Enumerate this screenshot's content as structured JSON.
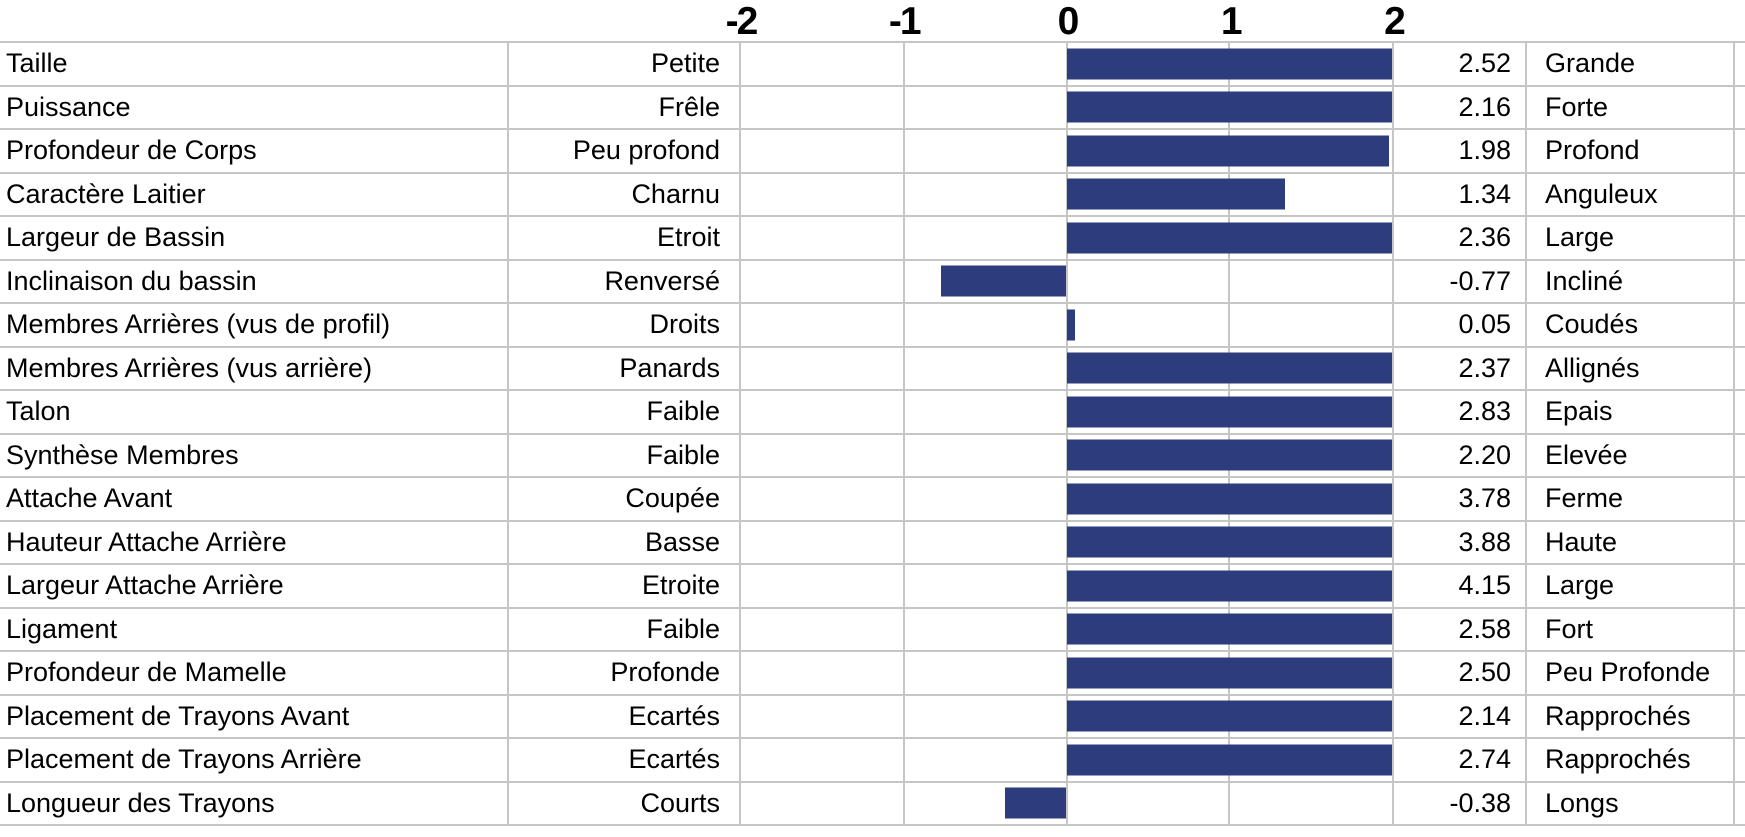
{
  "chart_data": {
    "type": "bar",
    "orientation": "horizontal",
    "title": "",
    "xlabel": "",
    "ylabel": "",
    "xlim": [
      -2,
      2
    ],
    "x_tick_labels": [
      "-2",
      "-1",
      "0",
      "1",
      "2"
    ],
    "x_tick_values": [
      -2,
      -1,
      0,
      1,
      2
    ],
    "grid": true,
    "legend": "none",
    "bars_clipped_at": 2,
    "colors": {
      "bar": "#2c3c7d",
      "grid": "#c6c6c6",
      "text": "#000000",
      "background": "#ffffff"
    },
    "categories": [
      "Taille",
      "Puissance",
      "Profondeur de Corps",
      "Caractère Laitier",
      "Largeur de Bassin",
      "Inclinaison du bassin",
      "Membres Arrières (vus de profil)",
      "Membres Arrières (vus arrière)",
      "Talon",
      "Synthèse Membres",
      "Attache Avant",
      "Hauteur Attache Arrière",
      "Largeur Attache Arrière",
      "Ligament",
      "Profondeur de Mamelle",
      "Placement de Trayons Avant",
      "Placement de Trayons Arrière",
      "Longueur des Trayons"
    ],
    "values": [
      2.52,
      2.16,
      1.98,
      1.34,
      2.36,
      -0.77,
      0.05,
      2.37,
      2.83,
      2.2,
      3.78,
      3.88,
      4.15,
      2.58,
      2.5,
      2.14,
      2.74,
      -0.38
    ],
    "rows": [
      {
        "trait": "Taille",
        "low_label": "Petite",
        "value": 2.52,
        "value_text": "2.52",
        "high_label": "Grande"
      },
      {
        "trait": "Puissance",
        "low_label": "Frêle",
        "value": 2.16,
        "value_text": "2.16",
        "high_label": "Forte"
      },
      {
        "trait": "Profondeur de Corps",
        "low_label": "Peu profond",
        "value": 1.98,
        "value_text": "1.98",
        "high_label": "Profond"
      },
      {
        "trait": "Caractère Laitier",
        "low_label": "Charnu",
        "value": 1.34,
        "value_text": "1.34",
        "high_label": "Anguleux"
      },
      {
        "trait": "Largeur de Bassin",
        "low_label": "Etroit",
        "value": 2.36,
        "value_text": "2.36",
        "high_label": "Large"
      },
      {
        "trait": "Inclinaison du bassin",
        "low_label": "Renversé",
        "value": -0.77,
        "value_text": "-0.77",
        "high_label": "Incliné"
      },
      {
        "trait": "Membres Arrières (vus de profil)",
        "low_label": "Droits",
        "value": 0.05,
        "value_text": "0.05",
        "high_label": "Coudés"
      },
      {
        "trait": "Membres Arrières (vus arrière)",
        "low_label": "Panards",
        "value": 2.37,
        "value_text": "2.37",
        "high_label": "Allignés"
      },
      {
        "trait": "Talon",
        "low_label": "Faible",
        "value": 2.83,
        "value_text": "2.83",
        "high_label": "Epais"
      },
      {
        "trait": "Synthèse Membres",
        "low_label": "Faible",
        "value": 2.2,
        "value_text": "2.20",
        "high_label": "Elevée"
      },
      {
        "trait": "Attache Avant",
        "low_label": "Coupée",
        "value": 3.78,
        "value_text": "3.78",
        "high_label": "Ferme"
      },
      {
        "trait": "Hauteur Attache Arrière",
        "low_label": "Basse",
        "value": 3.88,
        "value_text": "3.88",
        "high_label": "Haute"
      },
      {
        "trait": "Largeur Attache Arrière",
        "low_label": "Etroite",
        "value": 4.15,
        "value_text": "4.15",
        "high_label": "Large"
      },
      {
        "trait": "Ligament",
        "low_label": "Faible",
        "value": 2.58,
        "value_text": "2.58",
        "high_label": "Fort"
      },
      {
        "trait": "Profondeur de Mamelle",
        "low_label": "Profonde",
        "value": 2.5,
        "value_text": "2.50",
        "high_label": "Peu Profonde"
      },
      {
        "trait": "Placement de Trayons Avant",
        "low_label": "Ecartés",
        "value": 2.14,
        "value_text": "2.14",
        "high_label": "Rapprochés"
      },
      {
        "trait": "Placement de Trayons Arrière",
        "low_label": "Ecartés",
        "value": 2.74,
        "value_text": "2.74",
        "high_label": "Rapprochés"
      },
      {
        "trait": "Longueur des Trayons",
        "low_label": "Courts",
        "value": -0.38,
        "value_text": "-0.38",
        "high_label": "Longs"
      }
    ]
  }
}
